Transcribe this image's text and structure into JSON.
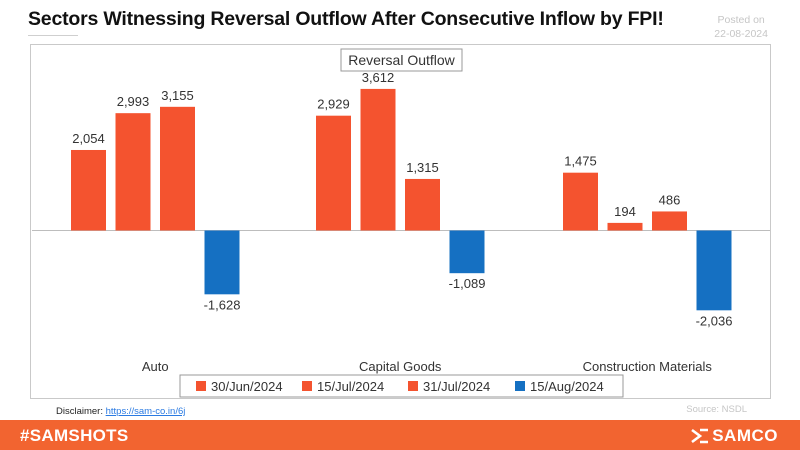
{
  "header": {
    "title": "Sectors Witnessing Reversal Outflow After Consecutive Inflow by FPI!",
    "posted_label": "Posted on",
    "posted_date": "22-08-2024"
  },
  "chart_data": {
    "type": "bar",
    "title": "Reversal Outflow",
    "categories": [
      "Auto",
      "Capital Goods",
      "Construction Materials"
    ],
    "series": [
      {
        "name": "30/Jun/2024",
        "color": "#f4532f",
        "values": [
          2054,
          2929,
          1475
        ]
      },
      {
        "name": "15/Jul/2024",
        "color": "#f4532f",
        "values": [
          2993,
          3612,
          194
        ]
      },
      {
        "name": "31/Jul/2024",
        "color": "#f4532f",
        "values": [
          3155,
          1315,
          486
        ]
      },
      {
        "name": "15/Aug/2024",
        "color": "#1570c2",
        "values": [
          -1628,
          -1089,
          -2036
        ]
      }
    ],
    "ylim": [
      -2500,
      4000
    ],
    "legend_position": "bottom",
    "grid": false
  },
  "footer": {
    "disclaimer_label": "Disclaimer:",
    "disclaimer_link": "https://sam-co.in/6j",
    "source": "Source: NSDL",
    "hashtag": "#SAMSHOTS",
    "brand": "SAMCO"
  },
  "colors": {
    "accent": "#f26430",
    "inflow_bar": "#f4532f",
    "outflow_bar": "#1570c2"
  }
}
